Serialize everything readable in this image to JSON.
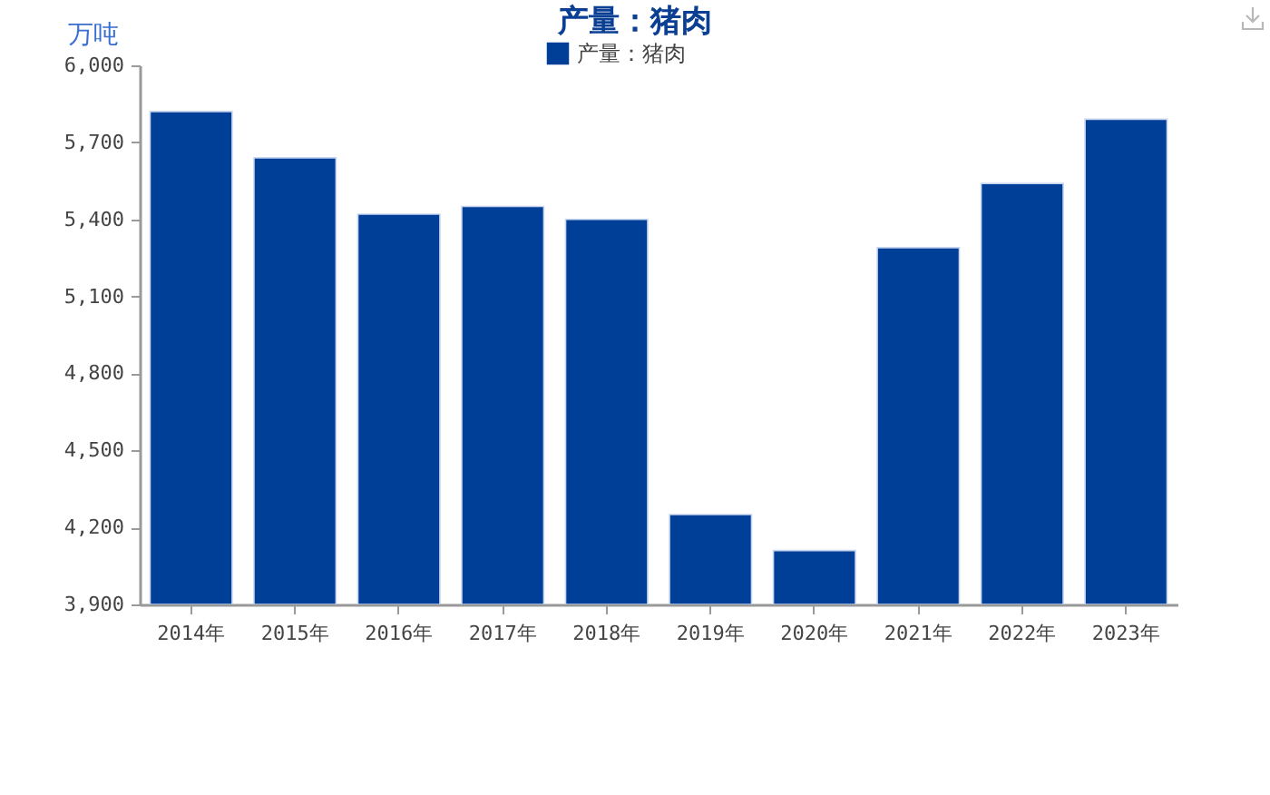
{
  "chart_data": {
    "type": "bar",
    "title": "产量：猪肉",
    "ylabel": "万吨",
    "categories": [
      "2014年",
      "2015年",
      "2016年",
      "2017年",
      "2018年",
      "2019年",
      "2020年",
      "2021年",
      "2022年",
      "2023年"
    ],
    "series": [
      {
        "name": "产量：猪肉",
        "color": "#003f98",
        "values": [
          5820,
          5640,
          5420,
          5450,
          5400,
          4250,
          4110,
          5290,
          5540,
          5790
        ]
      }
    ],
    "ylim": [
      3900,
      6000
    ],
    "yticks": [
      {
        "value": 3900,
        "label": "3,900"
      },
      {
        "value": 4200,
        "label": "4,200"
      },
      {
        "value": 4500,
        "label": "4,500"
      },
      {
        "value": 4800,
        "label": "4,800"
      },
      {
        "value": 5100,
        "label": "5,100"
      },
      {
        "value": 5400,
        "label": "5,400"
      },
      {
        "value": 5700,
        "label": "5,700"
      },
      {
        "value": 6000,
        "label": "6,000"
      }
    ],
    "legend": "top"
  }
}
